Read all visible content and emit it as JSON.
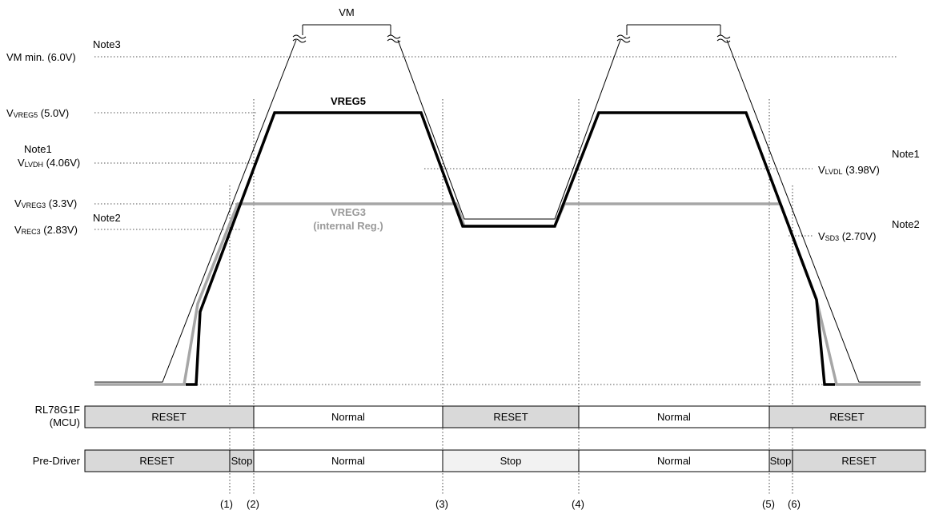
{
  "levels": {
    "vm_label": "VM",
    "vm_min": {
      "main": "VM min. (6.0V)",
      "note": "Note3"
    },
    "vreg5": {
      "prefix": "V",
      "sub": "VREG5",
      "suffix": " (5.0V)"
    },
    "vlvdh": {
      "prefix": "V",
      "sub": "LVDH",
      "suffix": " (4.06V)",
      "note": "Note1"
    },
    "vreg3": {
      "prefix": "V",
      "sub": "VREG3",
      "suffix": " (3.3V)"
    },
    "vrec3": {
      "prefix": "V",
      "sub": "REC3",
      "suffix": " (2.83V)",
      "note": "Note2"
    },
    "vlvdl": {
      "prefix": "V",
      "sub": "LVDL",
      "suffix": " (3.98V)",
      "note": "Note1"
    },
    "vsd3": {
      "prefix": "V",
      "sub": "SD3",
      "suffix": " (2.70V)",
      "note": "Note2"
    }
  },
  "curves": {
    "vreg5_label": "VREG5",
    "vreg3_label_1": "VREG3",
    "vreg3_label_2": "(internal Reg.)"
  },
  "rows": {
    "mcu": {
      "label_1": "RL78G1F",
      "label_2": "(MCU)",
      "segments": [
        "RESET",
        "Normal",
        "RESET",
        "Normal",
        "RESET"
      ]
    },
    "pre_driver": {
      "label": "Pre-Driver",
      "segments": [
        "RESET",
        "Stop",
        "Normal",
        "Stop",
        "Normal",
        "Stop",
        "RESET"
      ]
    }
  },
  "markers": [
    "(1)",
    "(2)",
    "(3)",
    "(4)",
    "(5)",
    "(6)"
  ],
  "colors": {
    "reset_fill": "#d9d9d9",
    "stop_fill": "#f2f2f2",
    "normal_fill": "#ffffff",
    "vreg3_line": "#a6a6a6",
    "vreg5_line": "#000000"
  }
}
